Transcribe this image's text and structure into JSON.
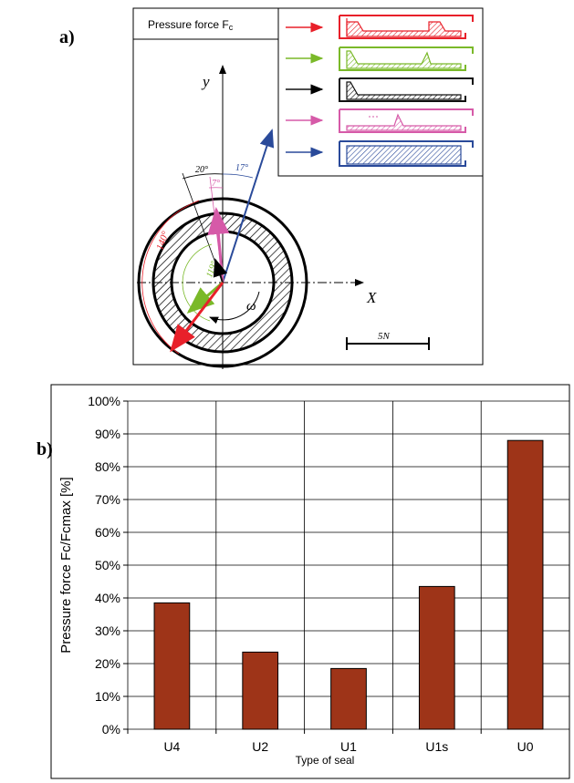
{
  "panel_a": {
    "label": "a)",
    "legend_title": "Pressure force F",
    "legend_title_sub": "c",
    "axis_y": "y",
    "axis_x": "X",
    "omega": "ω",
    "angle_20": "20°",
    "angle_17": "17°",
    "angle_7": "7°",
    "angle_140": "140°",
    "angle_119": "119°",
    "scale_label": "5N",
    "colors": {
      "U4": "#e8202a",
      "U2": "#7ab929",
      "U1": "#111111",
      "U1s": "#d65aa8",
      "U0": "#2a4a9a"
    }
  },
  "panel_b": {
    "label": "b)"
  },
  "chart_data": {
    "type": "bar",
    "categories": [
      "U4",
      "U2",
      "U1",
      "U1s",
      "U0"
    ],
    "values": [
      38.5,
      23.5,
      18.5,
      43.5,
      88
    ],
    "xlabel": "Type of seal",
    "ylabel": "Pressure force Fc/Fcmax [%]",
    "ylim": [
      0,
      100
    ],
    "yticks": [
      "0%",
      "10%",
      "20%",
      "30%",
      "40%",
      "50%",
      "60%",
      "70%",
      "80%",
      "90%",
      "100%"
    ],
    "bar_color": "#9e3418",
    "grid": true
  }
}
